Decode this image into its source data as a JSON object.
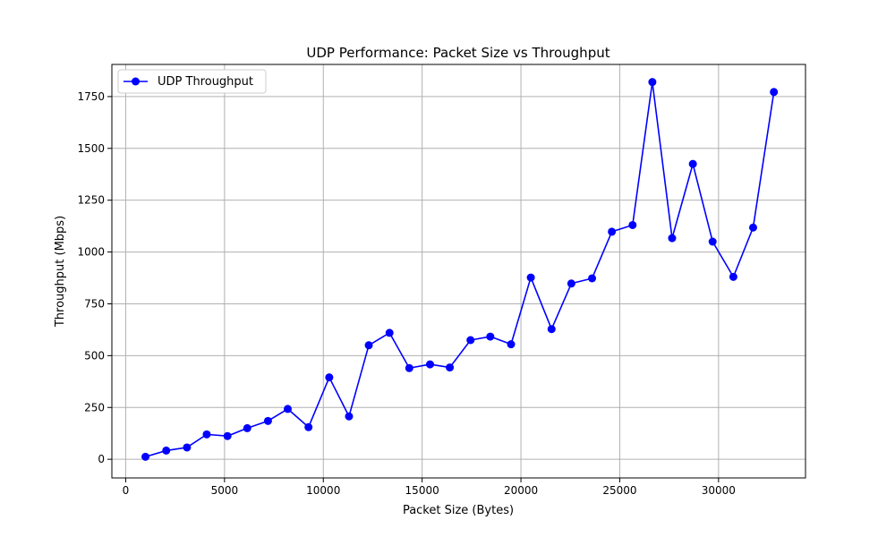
{
  "chart_data": {
    "type": "line",
    "title": "UDP Performance: Packet Size vs Throughput",
    "xlabel": "Packet Size (Bytes)",
    "ylabel": "Throughput (Mbps)",
    "xlim": [
      -700,
      34400
    ],
    "ylim": [
      -90,
      1905
    ],
    "xticks": [
      0,
      5000,
      10000,
      15000,
      20000,
      25000,
      30000
    ],
    "yticks": [
      0,
      250,
      500,
      750,
      1000,
      1250,
      1500,
      1750
    ],
    "grid": true,
    "legend_position": "top-left",
    "series": [
      {
        "name": "UDP Throughput",
        "color": "#0000ff",
        "marker": "circle",
        "x": [
          1000,
          2050,
          3100,
          4100,
          5150,
          6150,
          7200,
          8200,
          9250,
          10300,
          11300,
          12300,
          13350,
          14350,
          15400,
          16400,
          17450,
          18450,
          19500,
          20500,
          21550,
          22550,
          23600,
          24600,
          25650,
          26650,
          27650,
          28700,
          29700,
          30750,
          31750,
          32800
        ],
        "y": [
          12,
          42,
          57,
          120,
          112,
          150,
          185,
          243,
          155,
          395,
          207,
          550,
          610,
          440,
          458,
          443,
          575,
          592,
          555,
          877,
          628,
          848,
          873,
          1098,
          1130,
          1820,
          1067,
          1425,
          1050,
          880,
          1118,
          1772
        ]
      }
    ]
  }
}
